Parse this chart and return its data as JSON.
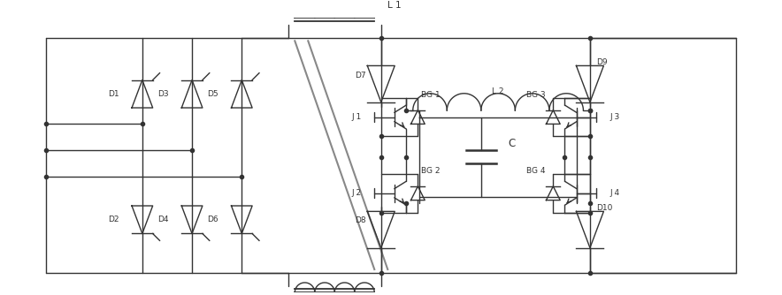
{
  "fig_width": 8.84,
  "fig_height": 3.34,
  "bg_color": "#ffffff",
  "line_color": "#333333",
  "lw": 1.0,
  "dot_r": 2.5,
  "fs": 6.5,
  "xlim": [
    0,
    220
  ],
  "ylim": [
    0,
    83
  ]
}
